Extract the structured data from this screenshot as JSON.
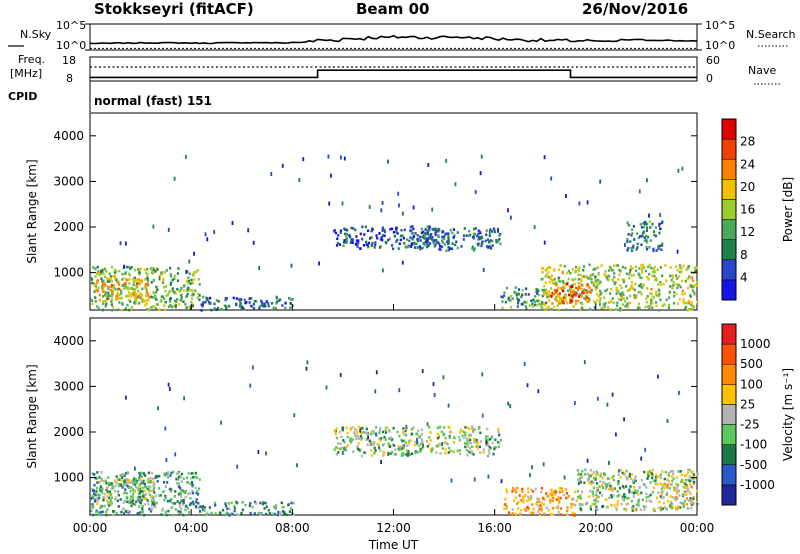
{
  "header": {
    "site": "Stokkseyri (fitACF)",
    "beam": "Beam 00",
    "date": "26/Nov/2016"
  },
  "colors": {
    "power_scale": [
      "#1414e6",
      "#2846c8",
      "#1e8246",
      "#4aa85a",
      "#9acd32",
      "#f0c000",
      "#ff8000",
      "#f04000",
      "#e00000"
    ],
    "velocity_scale": [
      "#1e2896",
      "#2a5ac8",
      "#1e7846",
      "#5ac85a",
      "#b4b4b4",
      "#ffc000",
      "#ff8c00",
      "#ff5000",
      "#e61e1e"
    ]
  },
  "chart_data": [
    {
      "type": "line",
      "panel": "noise",
      "left_label": "N.Sky",
      "right_label": "N.Search",
      "left_ticks": [
        "10^5",
        "10^0"
      ],
      "right_ticks": [
        "10^5",
        "10^0"
      ],
      "x": [
        0,
        1,
        2,
        3,
        4,
        5,
        6,
        7,
        8,
        9,
        10,
        11,
        12,
        13,
        14,
        15,
        16,
        17,
        18,
        19,
        20,
        21,
        22,
        23,
        24
      ],
      "series": [
        {
          "values": [
            1.2,
            1.25,
            1.3,
            1.3,
            1.25,
            1.3,
            1.35,
            1.3,
            1.4,
            1.6,
            1.9,
            2.1,
            2.2,
            2.1,
            2.2,
            2.0,
            1.8,
            1.6,
            1.5,
            1.5,
            1.6,
            1.9,
            1.8,
            1.7,
            1.6
          ]
        },
        {
          "values": [
            0.3,
            0.3,
            0.3,
            0.3,
            0.3,
            0.3,
            0.3,
            0.3,
            0.3,
            0.3,
            0.3,
            0.3,
            0.3,
            0.3,
            0.3,
            0.3,
            0.3,
            0.3,
            0.3,
            0.3,
            0.3,
            0.3,
            0.3,
            0.3,
            0.3
          ]
        }
      ]
    },
    {
      "type": "line",
      "panel": "frequency",
      "left_label": "Freq.",
      "left_unit": "[MHz]",
      "left_ticks": [
        "18",
        "8"
      ],
      "right_label": "Nave",
      "right_ticks": [
        "60",
        "0"
      ],
      "freq_steps": [
        {
          "x": [
            0,
            9
          ],
          "value": 9.5
        },
        {
          "x": [
            9,
            19
          ],
          "value": 12.5
        },
        {
          "x": [
            19,
            24
          ],
          "value": 9.5
        }
      ],
      "nave_level": 35
    },
    {
      "type": "table",
      "panel": "cpid",
      "label": "CPID",
      "entries": [
        {
          "x": 0,
          "text": "normal (fast) 151"
        }
      ]
    },
    {
      "type": "heatmap",
      "panel": "power",
      "ylabel": "Slant Range [km]",
      "yticks": [
        1000,
        2000,
        3000,
        4000
      ],
      "ylim": [
        180,
        4500
      ],
      "xlim": [
        0,
        24
      ],
      "colorbar_label": "Power [dB]",
      "colorbar_ticks": [
        4,
        8,
        12,
        16,
        20,
        24,
        28
      ],
      "colorbar_range": [
        0,
        32
      ],
      "regions": [
        {
          "x": [
            0,
            4.3
          ],
          "y": [
            200,
            1150
          ],
          "level": 14
        },
        {
          "x": [
            0.2,
            2.3
          ],
          "y": [
            400,
            900
          ],
          "level": 20
        },
        {
          "x": [
            4.3,
            8
          ],
          "y": [
            200,
            500
          ],
          "level": 7
        },
        {
          "x": [
            9.6,
            14
          ],
          "y": [
            1550,
            2050
          ],
          "level": 6
        },
        {
          "x": [
            13,
            16.2
          ],
          "y": [
            1500,
            2000
          ],
          "level": 8
        },
        {
          "x": [
            16.2,
            18
          ],
          "y": [
            200,
            700
          ],
          "level": 10
        },
        {
          "x": [
            17.8,
            24
          ],
          "y": [
            200,
            1200
          ],
          "level": 16
        },
        {
          "x": [
            18.2,
            19.8
          ],
          "y": [
            350,
            800
          ],
          "level": 26
        },
        {
          "x": [
            21.2,
            22.6
          ],
          "y": [
            1500,
            2150
          ],
          "level": 9
        }
      ]
    },
    {
      "type": "heatmap",
      "panel": "velocity",
      "ylabel": "Slant Range [km]",
      "yticks": [
        1000,
        2000,
        3000,
        4000
      ],
      "ylim": [
        180,
        4500
      ],
      "xlabel": "Time UT",
      "xticks": [
        "00:00",
        "04:00",
        "08:00",
        "12:00",
        "16:00",
        "20:00",
        "00:00"
      ],
      "xlim": [
        0,
        24
      ],
      "colorbar_label": "Velocity [m s⁻¹]",
      "colorbar_ticks": [
        "1000",
        "500",
        "100",
        "25",
        "-25",
        "-100",
        "-500",
        "-1000"
      ],
      "regions": [
        {
          "x": [
            0,
            4.3
          ],
          "y": [
            200,
            1150
          ],
          "level": 3
        },
        {
          "x": [
            0.2,
            2.5
          ],
          "y": [
            400,
            1000
          ],
          "level": 4
        },
        {
          "x": [
            4.3,
            8
          ],
          "y": [
            200,
            500
          ],
          "level": 3
        },
        {
          "x": [
            9.6,
            16.2
          ],
          "y": [
            1500,
            2150
          ],
          "level": 4
        },
        {
          "x": [
            16.3,
            19.2
          ],
          "y": [
            200,
            800
          ],
          "level": 6
        },
        {
          "x": [
            19.2,
            24
          ],
          "y": [
            300,
            1200
          ],
          "level": 4
        },
        {
          "x": [
            22.5,
            23.8
          ],
          "y": [
            350,
            900
          ],
          "level": 5
        }
      ]
    }
  ]
}
